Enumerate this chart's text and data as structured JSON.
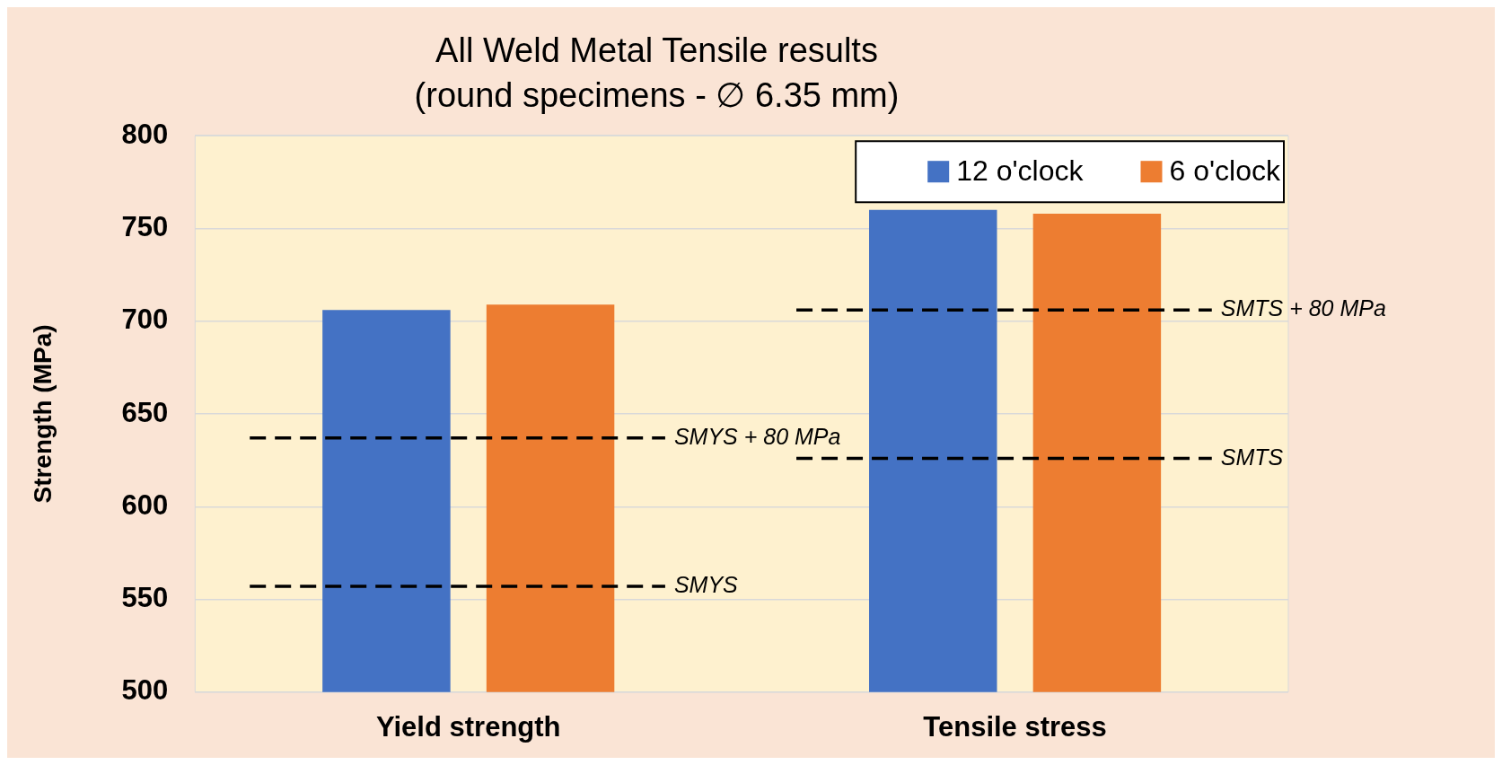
{
  "chart_data": {
    "type": "bar",
    "title": "All Weld Metal Tensile results",
    "subtitle": "(round specimens - ∅ 6.35 mm)",
    "ylabel": "Strength (MPa)",
    "categories": [
      "Yield strength",
      "Tensile stress"
    ],
    "series": [
      {
        "name": "12 o'clock",
        "color": "#4472c4",
        "values": [
          706,
          760
        ]
      },
      {
        "name": "6 o'clock",
        "color": "#ed7d31",
        "values": [
          709,
          758
        ]
      }
    ],
    "ylim": [
      500,
      800
    ],
    "yticks": [
      500,
      550,
      600,
      650,
      700,
      750,
      800
    ],
    "grid": "y",
    "legend": "top right",
    "ref_lines": [
      {
        "axis": "y",
        "value": 637,
        "label": "SMYS + 80 MPa",
        "color": "#000000",
        "line_style": "dashed"
      },
      {
        "axis": "y",
        "value": 557,
        "label": "SMYS",
        "color": "#000000",
        "line_style": "dashed"
      },
      {
        "axis": "y",
        "value": 706,
        "label": "SMTS + 80 MPa",
        "color": "#000000",
        "line_style": "dashed"
      },
      {
        "axis": "y",
        "value": 626,
        "label": "SMTS",
        "color": "#000000",
        "line_style": "dashed"
      }
    ]
  }
}
